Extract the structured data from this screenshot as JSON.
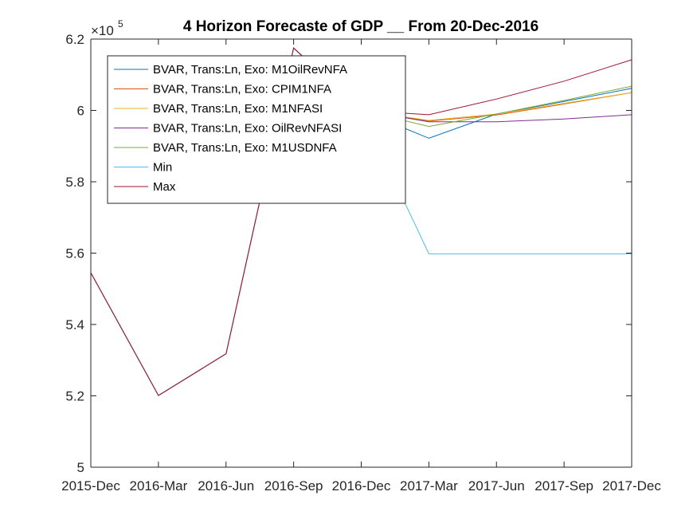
{
  "chart_data": {
    "type": "line",
    "title": "4 Horizon Forecaste of GDP __ From 20-Dec-2016",
    "y_multiplier": {
      "base": "×10",
      "exponent": "5"
    },
    "x": [
      "2015-Dec",
      "2016-Mar",
      "2016-Jun",
      "2016-Sep",
      "2016-Dec",
      "2017-Mar",
      "2017-Jun",
      "2017-Sep",
      "2017-Dec"
    ],
    "x_ticks": [
      "2015-Dec",
      "2016-Mar",
      "2016-Jun",
      "2016-Sep",
      "2016-Dec",
      "2017-Mar",
      "2017-Jun",
      "2017-Sep",
      "2017-Dec"
    ],
    "ylim": [
      5.0,
      6.2
    ],
    "y_ticks": [
      5.0,
      5.2,
      5.4,
      5.6,
      5.8,
      6.0,
      6.2
    ],
    "y_tick_labels": [
      "5",
      "5.2",
      "5.4",
      "5.6",
      "5.8",
      "6",
      "6.2"
    ],
    "legend_position": "top-left",
    "series": [
      {
        "name": "BVAR, Trans:Ln, Exo: M1OilRevNFA",
        "color": "#0072BD",
        "values": [
          5.545,
          5.201,
          5.318,
          6.175,
          6.0,
          5.922,
          5.99,
          6.025,
          6.062
        ]
      },
      {
        "name": "BVAR, Trans:Ln, Exo: CPIM1NFA",
        "color": "#D95319",
        "values": [
          5.545,
          5.201,
          5.318,
          6.175,
          6.0,
          5.97,
          5.987,
          6.018,
          6.05
        ]
      },
      {
        "name": "BVAR, Trans:Ln, Exo: M1NFASI",
        "color": "#EDB120",
        "values": [
          5.545,
          5.201,
          5.318,
          6.175,
          6.0,
          5.972,
          5.99,
          6.02,
          6.05
        ]
      },
      {
        "name": "BVAR, Trans:Ln, Exo: OilRevNFASI",
        "color": "#7E2F8E",
        "values": [
          5.545,
          5.201,
          5.318,
          6.175,
          6.0,
          5.968,
          5.968,
          5.976,
          5.988
        ]
      },
      {
        "name": "BVAR, Trans:Ln, Exo: M1USDNFA",
        "color": "#77AC30",
        "values": [
          5.545,
          5.201,
          5.318,
          6.175,
          6.0,
          5.955,
          5.99,
          6.028,
          6.068
        ]
      },
      {
        "name": "Min",
        "color": "#4DBEEE",
        "values": [
          5.545,
          5.201,
          5.318,
          6.175,
          6.0,
          5.598,
          5.598,
          5.598,
          5.598
        ]
      },
      {
        "name": "Max",
        "color": "#A2142F",
        "values": [
          5.545,
          5.201,
          5.318,
          6.175,
          6.0,
          5.988,
          6.032,
          6.082,
          6.142
        ]
      }
    ]
  }
}
